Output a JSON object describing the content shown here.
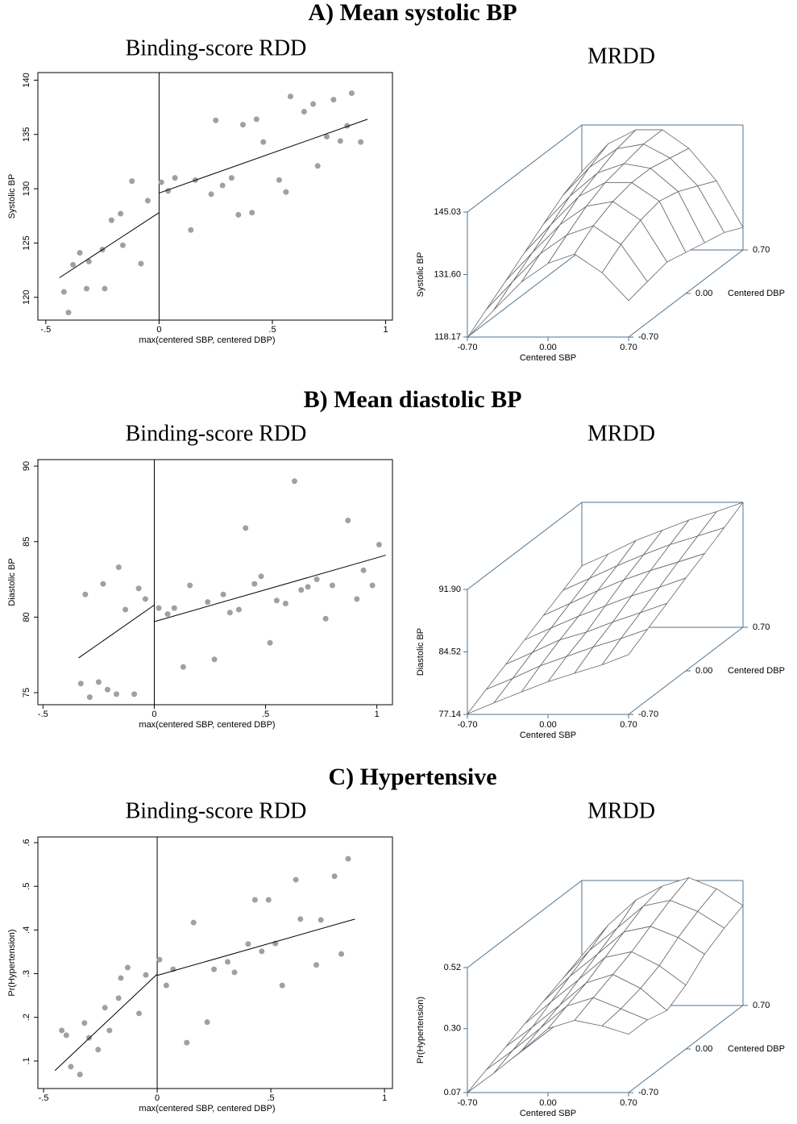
{
  "panel_titles": [
    "A) Mean systolic BP",
    "B) Mean diastolic BP",
    "C) Hypertensive"
  ],
  "chart_data": [
    {
      "type": "scatter",
      "title": "Binding-score RDD",
      "xlabel": "max(centered SBP, centered DBP)",
      "ylabel": "Systolic BP",
      "x": [
        -0.42,
        -0.4,
        -0.38,
        -0.35,
        -0.32,
        -0.31,
        -0.25,
        -0.24,
        -0.21,
        -0.17,
        -0.16,
        -0.12,
        -0.08,
        -0.05,
        0.01,
        0.04,
        0.07,
        0.14,
        0.16,
        0.23,
        0.25,
        0.28,
        0.32,
        0.35,
        0.37,
        0.41,
        0.43,
        0.46,
        0.53,
        0.56,
        0.58,
        0.64,
        0.68,
        0.7,
        0.74,
        0.77,
        0.8,
        0.83,
        0.85,
        0.89
      ],
      "y": [
        120.5,
        118.6,
        123.0,
        124.1,
        120.8,
        123.3,
        124.4,
        120.8,
        127.1,
        127.7,
        124.8,
        130.7,
        123.1,
        128.9,
        130.6,
        129.8,
        131.0,
        126.2,
        130.8,
        129.5,
        136.3,
        130.3,
        131.0,
        127.6,
        135.9,
        127.8,
        136.4,
        134.3,
        130.8,
        129.7,
        138.5,
        137.1,
        137.8,
        132.1,
        134.8,
        138.2,
        134.4,
        135.8,
        138.8,
        134.3
      ],
      "color": "#a0a0a0",
      "fit_lines": [
        {
          "x": [
            -0.44,
            0
          ],
          "y": [
            121.8,
            127.8
          ]
        },
        {
          "x": [
            0,
            0.92
          ],
          "y": [
            129.6,
            136.4
          ]
        }
      ],
      "cutoff": 0,
      "xlim": [
        -0.535,
        1.03
      ],
      "ylim": [
        117.9,
        140.7
      ],
      "xticks": [
        {
          "value": -0.5,
          "label": "-.5"
        },
        0,
        {
          "value": 0.5,
          "label": ".5"
        },
        1
      ],
      "yticks": [
        120,
        125,
        130,
        135,
        140
      ]
    },
    {
      "type": "surface",
      "title": "MRDD",
      "xlabel": "Centered SBP",
      "ylabel": "Centered DBP",
      "zlabel": "Systolic BP",
      "x": [
        -0.7,
        -0.47,
        -0.23,
        0,
        0.23,
        0.47,
        0.7
      ],
      "y": [
        -0.7,
        -0.47,
        -0.23,
        0,
        0.23,
        0.47,
        0.7
      ],
      "z": [
        [
          118,
          124,
          130,
          134,
          136,
          132,
          126
        ],
        [
          121,
          127,
          133,
          137,
          139,
          135,
          127
        ],
        [
          124,
          130,
          136,
          140,
          141,
          137,
          128
        ],
        [
          127,
          133,
          139,
          142,
          142,
          138,
          127
        ],
        [
          130,
          136,
          141,
          143,
          142,
          137,
          126
        ],
        [
          133,
          139,
          143,
          144,
          141,
          135,
          125
        ],
        [
          135,
          141,
          144,
          144,
          140,
          133,
          123
        ]
      ],
      "xlim": [
        -0.7,
        0.7
      ],
      "ylim": [
        -0.7,
        0.7
      ],
      "zlim": [
        118.17,
        145.03
      ],
      "xticks": [
        {
          "value": -0.7,
          "label": "-0.70"
        },
        {
          "value": 0,
          "label": "0.00"
        },
        {
          "value": 0.7,
          "label": "0.70"
        }
      ],
      "yticks": [
        {
          "value": -0.7,
          "label": "-0.70"
        },
        {
          "value": 0,
          "label": "0.00"
        },
        {
          "value": 0.7,
          "label": "0.70"
        }
      ],
      "zticks": [
        118.17,
        {
          "value": 131.6,
          "label": "131.60"
        },
        145.03
      ],
      "box_color": "#4f7390",
      "mesh_color": "#666666"
    },
    {
      "type": "scatter",
      "title": "Binding-score RDD",
      "xlabel": "max(centered SBP, centered DBP)",
      "ylabel": "Diastolic BP",
      "x": [
        -0.33,
        -0.31,
        -0.29,
        -0.25,
        -0.23,
        -0.21,
        -0.17,
        -0.16,
        -0.13,
        -0.09,
        -0.07,
        -0.04,
        0.02,
        0.06,
        0.09,
        0.13,
        0.16,
        0.24,
        0.27,
        0.31,
        0.34,
        0.38,
        0.41,
        0.45,
        0.48,
        0.52,
        0.55,
        0.59,
        0.63,
        0.66,
        0.69,
        0.73,
        0.77,
        0.8,
        0.87,
        0.91,
        0.94,
        0.98,
        1.01
      ],
      "y": [
        75.6,
        81.5,
        74.7,
        75.7,
        82.2,
        75.2,
        74.9,
        83.3,
        80.5,
        74.9,
        81.9,
        81.2,
        80.6,
        80.2,
        80.6,
        76.7,
        82.1,
        81.0,
        77.2,
        81.5,
        80.3,
        80.5,
        85.9,
        82.2,
        82.7,
        78.3,
        81.1,
        80.9,
        89.0,
        81.8,
        82.0,
        82.5,
        79.9,
        82.1,
        86.4,
        81.2,
        83.1,
        82.1,
        84.8
      ],
      "color": "#a0a0a0",
      "fit_lines": [
        {
          "x": [
            -0.34,
            0
          ],
          "y": [
            77.3,
            80.8
          ]
        },
        {
          "x": [
            0,
            1.04
          ],
          "y": [
            79.7,
            84.1
          ]
        }
      ],
      "cutoff": 0,
      "xlim": [
        -0.523,
        1.07
      ],
      "ylim": [
        74.2,
        90.43
      ],
      "xticks": [
        {
          "value": -0.5,
          "label": "-.5"
        },
        0,
        {
          "value": 0.5,
          "label": ".5"
        },
        1
      ],
      "yticks": [
        75,
        80,
        85,
        90
      ]
    },
    {
      "type": "surface",
      "title": "MRDD",
      "xlabel": "Centered SBP",
      "ylabel": "Centered DBP",
      "zlabel": "Diastolic BP",
      "x": [
        -0.7,
        -0.47,
        -0.23,
        0,
        0.23,
        0.47,
        0.7
      ],
      "y": [
        -0.7,
        -0.47,
        -0.23,
        0,
        0.23,
        0.47,
        0.7
      ],
      "z": [
        [
          77.2,
          78.5,
          79.8,
          81.0,
          82.0,
          83.0,
          84.2
        ],
        [
          78.4,
          79.7,
          81.2,
          82.3,
          83.4,
          84.4,
          85.5
        ],
        [
          79.6,
          81.0,
          82.5,
          83.4,
          84.6,
          85.7,
          86.8
        ],
        [
          80.8,
          82.2,
          83.6,
          84.8,
          86.0,
          87.0,
          88.1
        ],
        [
          82.0,
          83.4,
          84.9,
          86.2,
          87.3,
          88.3,
          89.3
        ],
        [
          83.2,
          84.6,
          86.1,
          87.4,
          88.6,
          89.6,
          90.6
        ],
        [
          84.4,
          85.8,
          87.4,
          88.6,
          89.8,
          90.8,
          91.9
        ]
      ],
      "xlim": [
        -0.7,
        0.7
      ],
      "ylim": [
        -0.7,
        0.7
      ],
      "zlim": [
        77.14,
        91.9
      ],
      "xticks": [
        {
          "value": -0.7,
          "label": "-0.70"
        },
        {
          "value": 0,
          "label": "0.00"
        },
        {
          "value": 0.7,
          "label": "0.70"
        }
      ],
      "yticks": [
        {
          "value": -0.7,
          "label": "-0.70"
        },
        {
          "value": 0,
          "label": "0.00"
        },
        {
          "value": 0.7,
          "label": "0.70"
        }
      ],
      "zticks": [
        77.14,
        84.52,
        {
          "value": 91.9,
          "label": "91.90"
        }
      ],
      "box_color": "#4f7390",
      "mesh_color": "#666666"
    },
    {
      "type": "scatter",
      "title": "Binding-score RDD",
      "xlabel": "max(centered SBP, centered DBP)",
      "ylabel": "Pr(Hypertension)",
      "x": [
        -0.42,
        -0.4,
        -0.38,
        -0.34,
        -0.32,
        -0.3,
        -0.26,
        -0.23,
        -0.21,
        -0.17,
        -0.16,
        -0.13,
        -0.08,
        -0.05,
        0.01,
        0.04,
        0.07,
        0.13,
        0.16,
        0.22,
        0.25,
        0.31,
        0.34,
        0.4,
        0.43,
        0.46,
        0.49,
        0.52,
        0.55,
        0.61,
        0.63,
        0.7,
        0.72,
        0.78,
        0.81,
        0.84
      ],
      "y": [
        0.17,
        0.159,
        0.087,
        0.069,
        0.187,
        0.153,
        0.126,
        0.222,
        0.17,
        0.244,
        0.29,
        0.314,
        0.209,
        0.297,
        0.332,
        0.273,
        0.31,
        0.142,
        0.417,
        0.189,
        0.31,
        0.327,
        0.303,
        0.368,
        0.469,
        0.351,
        0.469,
        0.369,
        0.273,
        0.515,
        0.425,
        0.32,
        0.423,
        0.523,
        0.345,
        0.563
      ],
      "color": "#a0a0a0",
      "fit_lines": [
        {
          "x": [
            -0.45,
            0
          ],
          "y": [
            0.078,
            0.299
          ]
        },
        {
          "x": [
            0,
            0.87
          ],
          "y": [
            0.296,
            0.425
          ]
        }
      ],
      "cutoff": 0,
      "xlim": [
        -0.525,
        1.035
      ],
      "ylim": [
        0.037,
        0.613
      ],
      "xticks": [
        {
          "value": -0.5,
          "label": "-.5"
        },
        0,
        {
          "value": 0.5,
          "label": ".5"
        },
        1
      ],
      "yticks": [
        {
          "value": 0.1,
          "label": ".1"
        },
        {
          "value": 0.2,
          "label": ".2"
        },
        {
          "value": 0.3,
          "label": ".3"
        },
        {
          "value": 0.4,
          "label": ".4"
        },
        {
          "value": 0.5,
          "label": ".5"
        },
        {
          "value": 0.6,
          "label": ".6"
        }
      ]
    },
    {
      "type": "surface",
      "title": "MRDD",
      "xlabel": "Centered SBP",
      "ylabel": "Centered DBP",
      "zlabel": "Pr(Hypertension)",
      "x": [
        -0.7,
        -0.47,
        -0.23,
        0,
        0.23,
        0.47,
        0.7
      ],
      "y": [
        -0.7,
        -0.47,
        -0.23,
        0,
        0.23,
        0.47,
        0.7
      ],
      "z": [
        [
          0.07,
          0.14,
          0.22,
          0.3,
          0.33,
          0.31,
          0.28
        ],
        [
          0.1,
          0.17,
          0.25,
          0.33,
          0.36,
          0.32,
          0.28
        ],
        [
          0.13,
          0.2,
          0.28,
          0.36,
          0.39,
          0.34,
          0.26
        ],
        [
          0.16,
          0.24,
          0.32,
          0.4,
          0.42,
          0.37,
          0.3
        ],
        [
          0.19,
          0.28,
          0.36,
          0.44,
          0.46,
          0.42,
          0.36
        ],
        [
          0.22,
          0.32,
          0.4,
          0.48,
          0.5,
          0.46,
          0.4
        ],
        [
          0.25,
          0.36,
          0.45,
          0.5,
          0.53,
          0.49,
          0.43
        ]
      ],
      "xlim": [
        -0.7,
        0.7
      ],
      "ylim": [
        -0.7,
        0.7
      ],
      "zlim": [
        0.07,
        0.52
      ],
      "xticks": [
        {
          "value": -0.7,
          "label": "-0.70"
        },
        {
          "value": 0,
          "label": "0.00"
        },
        {
          "value": 0.7,
          "label": "0.70"
        }
      ],
      "yticks": [
        {
          "value": -0.7,
          "label": "-0.70"
        },
        {
          "value": 0,
          "label": "0.00"
        },
        {
          "value": 0.7,
          "label": "0.70"
        }
      ],
      "zticks": [
        0.07,
        {
          "value": 0.3,
          "label": "0.30"
        },
        0.52
      ],
      "box_color": "#4f7390",
      "mesh_color": "#666666"
    }
  ]
}
